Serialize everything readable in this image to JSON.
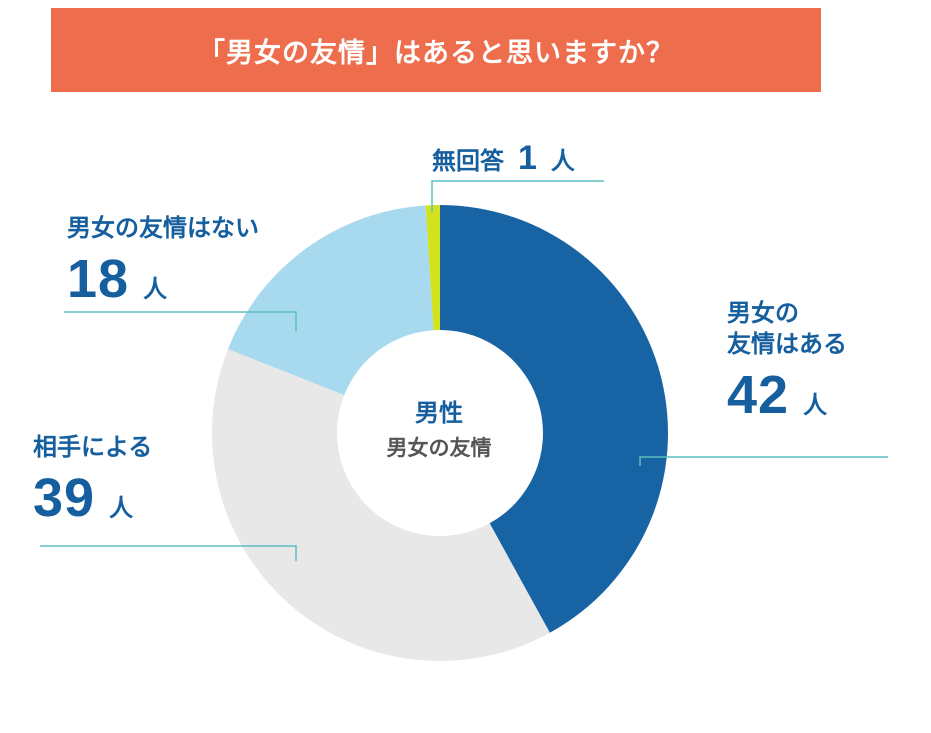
{
  "title": "「男女の友情」はあると思いますか？",
  "colors": {
    "banner": "#ed6d4c",
    "label_text": "#155f9f",
    "leader_line": "#5bbfbf"
  },
  "chart_data": {
    "type": "pie",
    "title": "「男女の友情」はあると思いますか？",
    "center_label": {
      "line1": "男性",
      "line2": "男女の友情"
    },
    "unit": "人",
    "slices": [
      {
        "label": "男女の友情はある",
        "label_lines": [
          "男女の",
          "友情はある"
        ],
        "value": 42,
        "color": "#1763a3"
      },
      {
        "label": "相手による",
        "label_lines": [
          "相手による"
        ],
        "value": 39,
        "color": "#e8e8e8"
      },
      {
        "label": "男女の友情はない",
        "label_lines": [
          "男女の友情はない"
        ],
        "value": 18,
        "color": "#a7d9ef"
      },
      {
        "label": "無回答",
        "label_lines": [
          "無回答"
        ],
        "value": 1,
        "color": "#d2e21c"
      }
    ]
  }
}
